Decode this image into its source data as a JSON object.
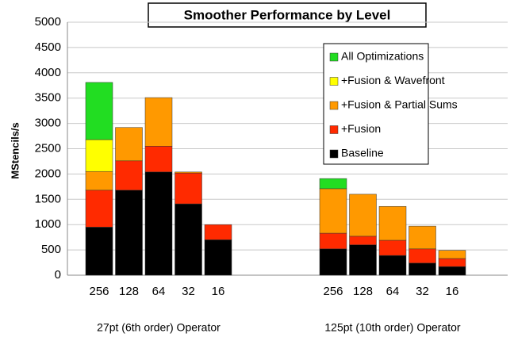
{
  "chart_data": {
    "type": "stacked_bar",
    "title": "Smoother Performance by Level",
    "y_label": "MStencils/s",
    "categories": [
      "256",
      "128",
      "64",
      "32",
      "16",
      null,
      "256",
      "128",
      "64",
      "32",
      "16"
    ],
    "group_labels": [
      "27pt (6th order) Operator",
      "125pt (10th order) Operator"
    ],
    "series": [
      {
        "name": "Baseline",
        "color": "#000000",
        "values": [
          950,
          1680,
          2040,
          1410,
          700,
          null,
          520,
          600,
          390,
          240,
          170
        ]
      },
      {
        "name": "+Fusion",
        "color": "#ff2a00",
        "values": [
          730,
          580,
          510,
          610,
          300,
          null,
          310,
          170,
          300,
          280,
          160
        ]
      },
      {
        "name": "+Fusion & Partial Sums",
        "color": "#ff9900",
        "values": [
          370,
          660,
          960,
          20,
          0,
          null,
          880,
          830,
          670,
          450,
          160
        ]
      },
      {
        "name": "+Fusion & Wavefront",
        "color": "#ffff00",
        "values": [
          630,
          0,
          0,
          0,
          0,
          null,
          0,
          0,
          0,
          0,
          0
        ]
      },
      {
        "name": "All Optimizations",
        "color": "#22dd22",
        "values": [
          1130,
          0,
          0,
          0,
          0,
          null,
          200,
          0,
          0,
          0,
          0
        ]
      }
    ],
    "ylim": [
      0,
      5000
    ],
    "yticks": [
      0,
      500,
      1000,
      1500,
      2000,
      2500,
      3000,
      3500,
      4000,
      4500,
      5000
    ],
    "grid": true
  }
}
